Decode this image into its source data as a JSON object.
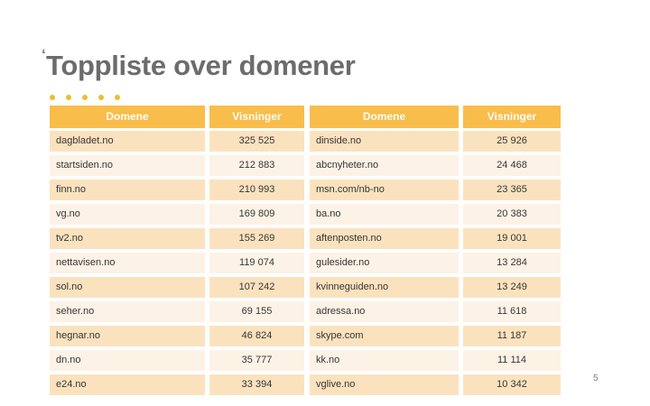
{
  "slide": {
    "title": "Toppliste over domener",
    "title_mark": "‘",
    "page_number": "5"
  },
  "decor": {
    "dot_count": 5
  },
  "colors": {
    "header_bg": "#F8BD4B",
    "header_text": "#FFFDF5",
    "row_dark": "#FBE2BE",
    "row_light": "#FDF2E6",
    "title_text": "#6C6C6C",
    "dot": "#EDBE2C",
    "cell_text": "#363636",
    "page_number": "#7F7F7F"
  },
  "table": {
    "columns": [
      "Domene",
      "Visninger",
      "Domene",
      "Visninger"
    ],
    "rows": [
      [
        "dagbladet.no",
        "325 525",
        "dinside.no",
        "25 926"
      ],
      [
        "startsiden.no",
        "212 883",
        "abcnyheter.no",
        "24 468"
      ],
      [
        "finn.no",
        "210 993",
        "msn.com/nb-no",
        "23 365"
      ],
      [
        "vg.no",
        "169 809",
        "ba.no",
        "20 383"
      ],
      [
        "tv2.no",
        "155 269",
        "aftenposten.no",
        "19 001"
      ],
      [
        "nettavisen.no",
        "119 074",
        "gulesider.no",
        "13 284"
      ],
      [
        "sol.no",
        "107 242",
        "kvinneguiden.no",
        "13 249"
      ],
      [
        "seher.no",
        "69 155",
        "adressa.no",
        "11 618"
      ],
      [
        "hegnar.no",
        "46 824",
        "skype.com",
        "11 187"
      ],
      [
        "dn.no",
        "35 777",
        "kk.no",
        "11 114"
      ],
      [
        "e24.no",
        "33 394",
        "vglive.no",
        "10 342"
      ]
    ]
  }
}
